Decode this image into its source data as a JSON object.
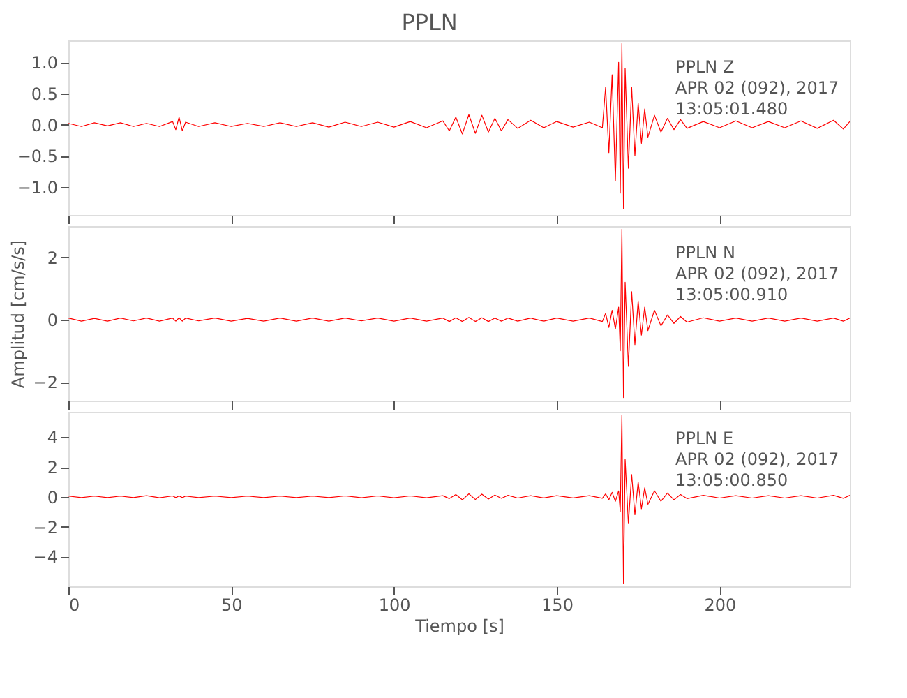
{
  "chart_data": [
    {
      "type": "line",
      "title": "PPLN",
      "annotations": [
        "PPLN   Z",
        "APR 02 (092), 2017",
        "13:05:01.480"
      ],
      "xlim": [
        0,
        240
      ],
      "xticks": [
        0,
        50,
        100,
        150,
        200
      ],
      "ylim": [
        -1.45,
        1.35
      ],
      "yticks": [
        {
          "value": -1,
          "label": "−1.0"
        },
        {
          "value": -0.5,
          "label": "−0.5"
        },
        {
          "value": 0,
          "label": "0.0"
        },
        {
          "value": 0.5,
          "label": "0.5"
        },
        {
          "value": 1,
          "label": "1.0"
        }
      ],
      "tick_labels": "y",
      "grid": false,
      "line_style": "solid",
      "marker": "none",
      "x": [
        0,
        4,
        8,
        12,
        16,
        20,
        24,
        28,
        32,
        33,
        34,
        35,
        36,
        40,
        45,
        50,
        55,
        60,
        65,
        70,
        75,
        80,
        85,
        90,
        95,
        100,
        105,
        110,
        115,
        117,
        119,
        121,
        123,
        125,
        127,
        129,
        131,
        133,
        135,
        138,
        142,
        146,
        150,
        155,
        160,
        164,
        165,
        166,
        167,
        168,
        169,
        169.5,
        170,
        170.5,
        171,
        172,
        173,
        174,
        175,
        176,
        177,
        178,
        180,
        182,
        184,
        186,
        188,
        190,
        195,
        200,
        205,
        210,
        215,
        220,
        225,
        230,
        235,
        238,
        240
      ],
      "series": [
        {
          "color": "#ff0000",
          "values": [
            0.02,
            -0.03,
            0.03,
            -0.02,
            0.03,
            -0.03,
            0.02,
            -0.03,
            0.05,
            -0.08,
            0.12,
            -0.1,
            0.04,
            -0.03,
            0.03,
            -0.03,
            0.02,
            -0.03,
            0.03,
            -0.03,
            0.03,
            -0.04,
            0.04,
            -0.03,
            0.04,
            -0.04,
            0.05,
            -0.05,
            0.06,
            -0.1,
            0.12,
            -0.15,
            0.16,
            -0.14,
            0.15,
            -0.12,
            0.1,
            -0.1,
            0.08,
            -0.06,
            0.07,
            -0.05,
            0.05,
            -0.04,
            0.04,
            -0.05,
            0.6,
            -0.45,
            0.8,
            -0.9,
            1.0,
            -1.1,
            1.3,
            -1.35,
            0.9,
            -0.7,
            0.6,
            -0.5,
            0.35,
            -0.3,
            0.25,
            -0.2,
            0.15,
            -0.12,
            0.1,
            -0.08,
            0.08,
            -0.06,
            0.05,
            -0.05,
            0.06,
            -0.05,
            0.05,
            -0.05,
            0.06,
            -0.06,
            0.07,
            -0.07,
            0.05
          ]
        }
      ]
    },
    {
      "type": "line",
      "ylabel": "Amplitud [cm/s/s]",
      "annotations": [
        "PPLN   N",
        "APR 02 (092), 2017",
        "13:05:00.910"
      ],
      "xlim": [
        0,
        240
      ],
      "xticks": [
        0,
        50,
        100,
        150,
        200
      ],
      "ylim": [
        -2.6,
        3.0
      ],
      "yticks": [
        {
          "value": -2,
          "label": "−2"
        },
        0,
        2
      ],
      "tick_labels": "y",
      "grid": false,
      "line_style": "solid",
      "marker": "none",
      "x": [
        0,
        4,
        8,
        12,
        16,
        20,
        24,
        28,
        32,
        33,
        34,
        35,
        36,
        40,
        45,
        50,
        55,
        60,
        65,
        70,
        75,
        80,
        85,
        90,
        95,
        100,
        105,
        110,
        115,
        117,
        119,
        121,
        123,
        125,
        127,
        129,
        131,
        133,
        135,
        138,
        142,
        146,
        150,
        155,
        160,
        164,
        165,
        166,
        167,
        168,
        169,
        169.5,
        170,
        170.5,
        171,
        172,
        173,
        174,
        175,
        176,
        177,
        178,
        180,
        182,
        184,
        186,
        188,
        190,
        195,
        200,
        205,
        210,
        215,
        220,
        225,
        230,
        235,
        238,
        240
      ],
      "series": [
        {
          "color": "#ff0000",
          "values": [
            0.05,
            -0.05,
            0.04,
            -0.05,
            0.05,
            -0.04,
            0.05,
            -0.05,
            0.05,
            -0.05,
            0.06,
            -0.05,
            0.05,
            -0.04,
            0.05,
            -0.05,
            0.04,
            -0.05,
            0.05,
            -0.05,
            0.05,
            -0.05,
            0.05,
            -0.04,
            0.05,
            -0.05,
            0.05,
            -0.05,
            0.05,
            -0.06,
            0.06,
            -0.06,
            0.07,
            -0.06,
            0.06,
            -0.06,
            0.05,
            -0.05,
            0.05,
            -0.05,
            0.05,
            -0.05,
            0.05,
            -0.05,
            0.05,
            -0.06,
            0.2,
            -0.25,
            0.3,
            -0.3,
            0.4,
            -1.0,
            2.9,
            -2.5,
            1.2,
            -1.5,
            0.9,
            -0.8,
            0.6,
            -0.5,
            0.4,
            -0.35,
            0.3,
            -0.2,
            0.15,
            -0.12,
            0.1,
            -0.08,
            0.06,
            -0.05,
            0.05,
            -0.05,
            0.05,
            -0.05,
            0.05,
            -0.05,
            0.05,
            -0.05,
            0.05
          ]
        }
      ]
    },
    {
      "type": "line",
      "xlabel": "Tiempo [s]",
      "annotations": [
        "PPLN   E",
        "APR 02 (092), 2017",
        "13:05:00.850"
      ],
      "xlim": [
        0,
        240
      ],
      "xticks": [
        0,
        50,
        100,
        150,
        200
      ],
      "ylim": [
        -6.0,
        5.7
      ],
      "yticks": [
        {
          "value": -4,
          "label": "−4"
        },
        {
          "value": -2,
          "label": "−2"
        },
        0,
        2,
        4
      ],
      "grid": false,
      "line_style": "solid",
      "marker": "none",
      "x": [
        0,
        4,
        8,
        12,
        16,
        20,
        24,
        28,
        32,
        33,
        34,
        35,
        36,
        40,
        45,
        50,
        55,
        60,
        65,
        70,
        75,
        80,
        85,
        90,
        95,
        100,
        105,
        110,
        115,
        117,
        119,
        121,
        123,
        125,
        127,
        129,
        131,
        133,
        135,
        138,
        142,
        146,
        150,
        155,
        160,
        164,
        165,
        166,
        167,
        168,
        169,
        169.5,
        170,
        170.5,
        171,
        172,
        173,
        174,
        175,
        176,
        177,
        178,
        180,
        182,
        184,
        186,
        188,
        190,
        195,
        200,
        205,
        210,
        215,
        220,
        225,
        230,
        235,
        238,
        240
      ],
      "series": [
        {
          "color": "#ff0000",
          "values": [
            0.05,
            -0.05,
            0.05,
            -0.05,
            0.05,
            -0.05,
            0.08,
            -0.06,
            0.06,
            -0.05,
            0.06,
            -0.05,
            0.05,
            -0.05,
            0.05,
            -0.05,
            0.05,
            -0.05,
            0.05,
            -0.05,
            0.05,
            -0.05,
            0.06,
            -0.06,
            0.06,
            -0.06,
            0.06,
            -0.06,
            0.08,
            -0.12,
            0.15,
            -0.2,
            0.2,
            -0.18,
            0.18,
            -0.15,
            0.12,
            -0.1,
            0.1,
            -0.08,
            0.08,
            -0.07,
            0.08,
            -0.07,
            0.08,
            -0.1,
            0.2,
            -0.2,
            0.3,
            -0.3,
            0.4,
            -1.0,
            5.5,
            -5.8,
            2.5,
            -1.8,
            1.5,
            -1.2,
            1.0,
            -0.8,
            0.6,
            -0.5,
            0.4,
            -0.3,
            0.25,
            -0.2,
            0.15,
            -0.12,
            0.1,
            -0.08,
            0.08,
            -0.08,
            0.08,
            -0.08,
            0.08,
            -0.08,
            0.1,
            -0.1,
            0.1
          ]
        }
      ]
    }
  ]
}
